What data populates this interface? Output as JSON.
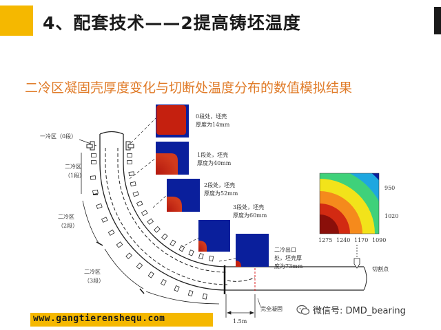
{
  "header": {
    "title": "4、配套技术——2提高铸坯温度"
  },
  "subtitle": "二冷区凝固壳厚度变化与切断处温度分布的数值模拟结果",
  "zones": {
    "zone0": "一冷区（0段）",
    "zone1_a": "二冷区",
    "zone1_b": "（1段）",
    "zone2_a": "二冷区",
    "zone2_b": "（2段）",
    "zone3_a": "二冷区",
    "zone3_b": "（3段）"
  },
  "sections": [
    {
      "line1": "0段处，坯壳",
      "line2": "厚度为14mm"
    },
    {
      "line1": "1段处，坯壳",
      "line2": "厚度为40mm"
    },
    {
      "line1": "2段处，坯壳",
      "line2": "厚度为52mm"
    },
    {
      "line1": "3段处，坯壳",
      "line2": "厚度为60mm"
    },
    {
      "line1": "二冷出口",
      "line2": "处，坯壳厚",
      "line3": "度为73mm"
    }
  ],
  "contour": {
    "right_labels": [
      "950",
      "1020"
    ],
    "bottom_labels": [
      "1275",
      "1240",
      "1170",
      "1090"
    ],
    "colors": [
      "#0a1f9c",
      "#1ea7e0",
      "#3fd17a",
      "#f2e31a",
      "#f58a1c",
      "#d22a12",
      "#8a0f0a"
    ]
  },
  "labels": {
    "cut_point": "切割点",
    "full_solid": "完全凝固",
    "distance": "1.5m"
  },
  "footer": {
    "url": "www.gangtierenshequ.com",
    "wechat": "微信号: DMD_bearing"
  },
  "colors": {
    "accent": "#f5b800",
    "subtitle": "#e07c2a",
    "solid_shell": "#0a1f9c",
    "liquid_core": "#b3170e"
  }
}
